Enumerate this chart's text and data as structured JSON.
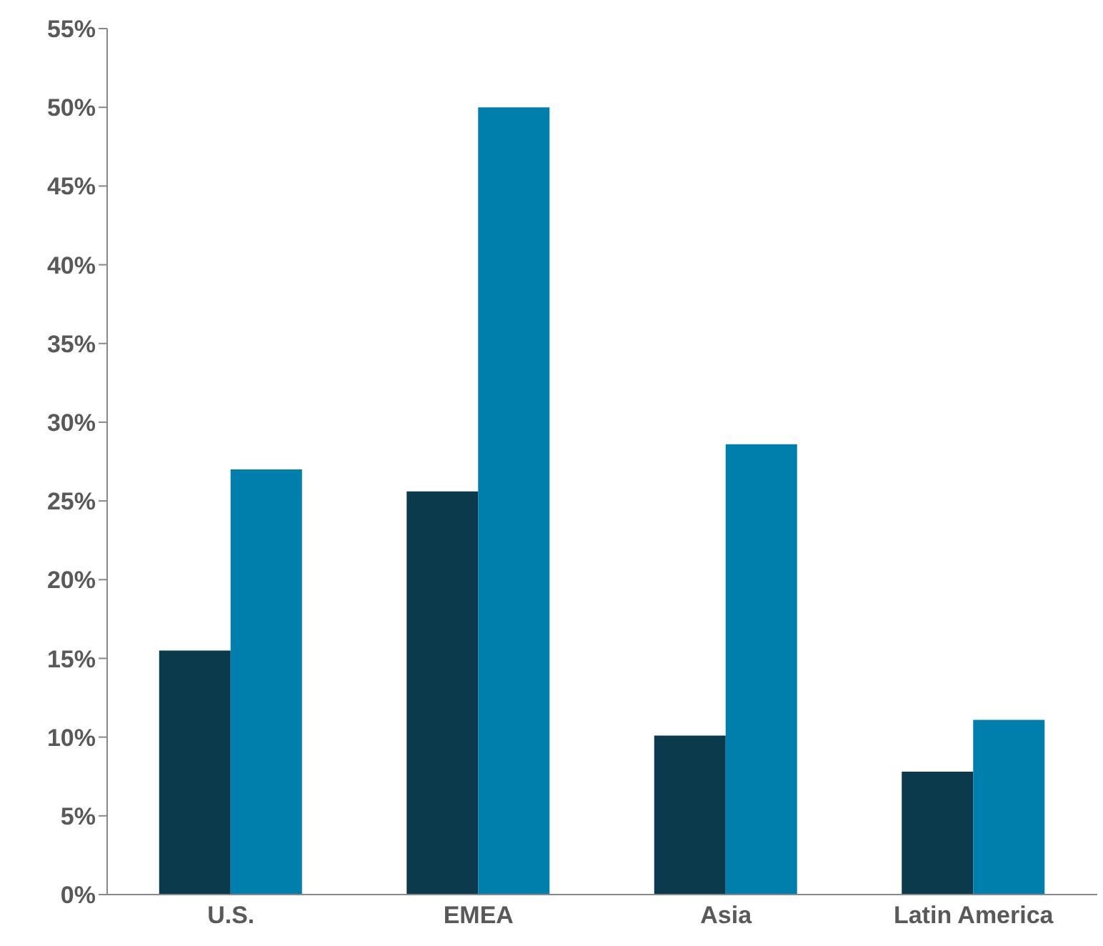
{
  "chart_data": {
    "type": "bar",
    "categories": [
      "U.S.",
      "EMEA",
      "Asia",
      "Latin America"
    ],
    "series": [
      {
        "color": "#0b3a4d",
        "values": [
          15.5,
          25.6,
          10.1,
          7.8
        ]
      },
      {
        "color": "#007fad",
        "values": [
          27,
          50,
          28.6,
          11.1
        ]
      }
    ],
    "ylim": [
      0,
      55
    ],
    "yticks": [
      {
        "value": 0,
        "label": "0%"
      },
      {
        "value": 5,
        "label": "5%"
      },
      {
        "value": 10,
        "label": "10%"
      },
      {
        "value": 15,
        "label": "15%"
      },
      {
        "value": 20,
        "label": "20%"
      },
      {
        "value": 25,
        "label": "25%"
      },
      {
        "value": 30,
        "label": "30%"
      },
      {
        "value": 35,
        "label": "35%"
      },
      {
        "value": 40,
        "label": "40%"
      },
      {
        "value": 45,
        "label": "45%"
      },
      {
        "value": 50,
        "label": "50%"
      },
      {
        "value": 55,
        "label": "55%"
      }
    ],
    "grid": false,
    "legend": false
  }
}
